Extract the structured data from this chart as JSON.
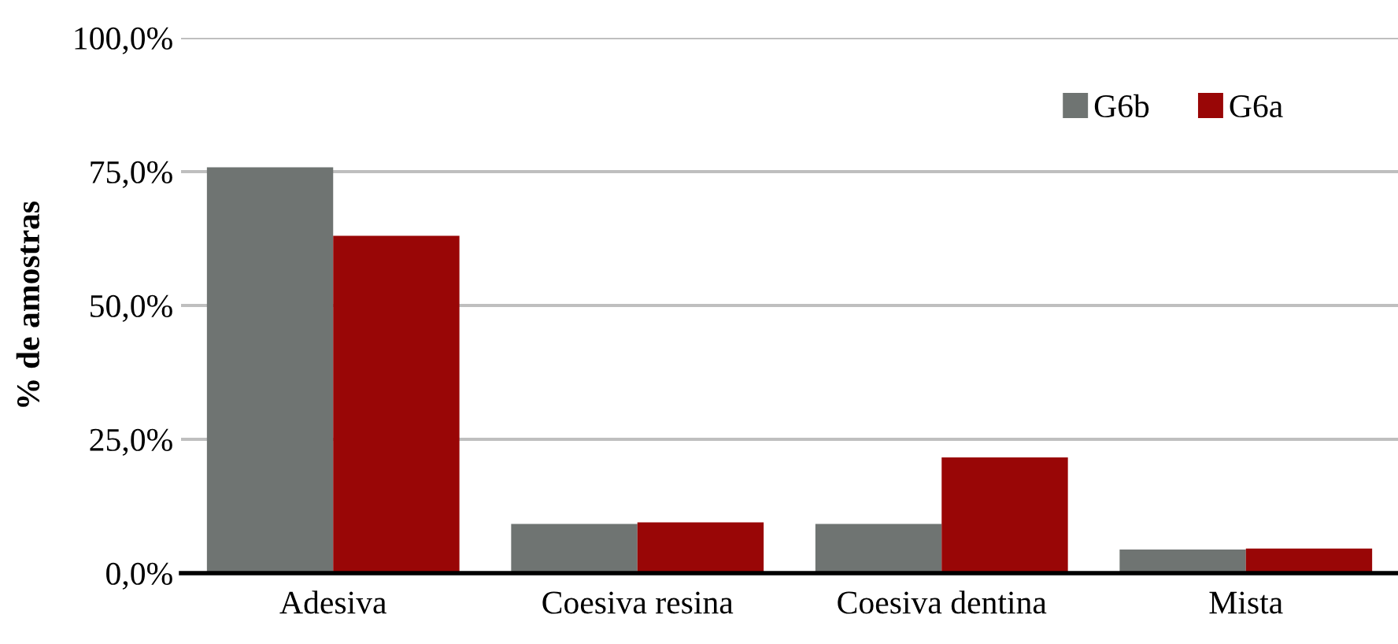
{
  "chart_data": {
    "type": "bar",
    "ylabel": "% de amostras",
    "categories": [
      "Adesiva",
      "Coesiva resina",
      "Coesiva dentina",
      "Mista"
    ],
    "series": [
      {
        "name": "G6b",
        "color": "#6f7472",
        "values": [
          75.8,
          9.2,
          9.2,
          4.4
        ]
      },
      {
        "name": "G6a",
        "color": "#990606",
        "values": [
          63.0,
          9.5,
          21.6,
          4.6
        ]
      }
    ],
    "ylim": [
      0,
      100
    ],
    "yticks": [
      {
        "value": 0,
        "label": "0,0%"
      },
      {
        "value": 25,
        "label": "25,0%"
      },
      {
        "value": 50,
        "label": "50,0%"
      },
      {
        "value": 75,
        "label": "75,0%"
      },
      {
        "value": 100,
        "label": "100,0%"
      }
    ],
    "grid": "y",
    "legend": "top right"
  }
}
